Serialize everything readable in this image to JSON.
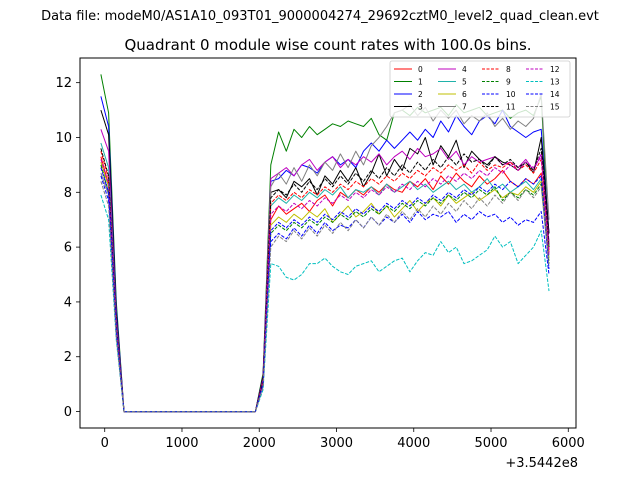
{
  "figure": {
    "suptitle": "Data file: modeM0/AS1A10_093T01_9000004274_29692cztM0_level2_quad_clean.evt",
    "title": "Quadrant 0 module wise count rates with 100.0s bins.",
    "offset_label": "+3.5442e8"
  },
  "chart_data": {
    "type": "line",
    "title": "Quadrant 0 module wise count rates with 100.0s bins.",
    "xlabel": "",
    "ylabel": "",
    "x_offset_text": "+3.5442e8",
    "xlim": [
      -320,
      6100
    ],
    "ylim": [
      -0.6,
      12.9
    ],
    "xticks": [
      0,
      1000,
      2000,
      3000,
      4000,
      5000,
      6000
    ],
    "yticks": [
      0,
      2,
      4,
      6,
      8,
      10,
      12
    ],
    "legend_position": "top-right",
    "legend_columns": 4,
    "x": [
      -50,
      50,
      150,
      250,
      350,
      450,
      550,
      650,
      750,
      850,
      950,
      1050,
      1150,
      1250,
      1350,
      1450,
      1550,
      1650,
      1750,
      1850,
      1950,
      2050,
      2150,
      2250,
      2350,
      2450,
      2550,
      2650,
      2750,
      2850,
      2950,
      3050,
      3150,
      3250,
      3350,
      3450,
      3550,
      3650,
      3750,
      3850,
      3950,
      4050,
      4150,
      4250,
      4350,
      4450,
      4550,
      4650,
      4750,
      4850,
      4950,
      5050,
      5150,
      5250,
      5350,
      5450,
      5550,
      5650,
      5750
    ],
    "series": [
      {
        "name": "0",
        "color": "#ff0000",
        "dash": "solid",
        "values": [
          9.3,
          8.3,
          3.0,
          0.0,
          0.0,
          0.0,
          0.0,
          0.0,
          0.0,
          0.0,
          0.0,
          0.0,
          0.0,
          0.0,
          0.0,
          0.0,
          0.0,
          0.0,
          0.0,
          0.0,
          0.0,
          1.2,
          7.0,
          7.5,
          7.2,
          7.4,
          7.6,
          7.3,
          7.7,
          7.9,
          7.5,
          8.0,
          7.8,
          8.1,
          7.9,
          8.2,
          8.0,
          8.3,
          8.1,
          8.0,
          8.4,
          8.2,
          8.5,
          8.1,
          8.6,
          8.3,
          8.7,
          8.4,
          8.2,
          8.6,
          8.3,
          8.5,
          8.8,
          8.4,
          8.2,
          8.5,
          8.3,
          8.7,
          5.8
        ]
      },
      {
        "name": "1",
        "color": "#008000",
        "dash": "solid",
        "values": [
          12.3,
          10.9,
          4.0,
          0.0,
          0.0,
          0.0,
          0.0,
          0.0,
          0.0,
          0.0,
          0.0,
          0.0,
          0.0,
          0.0,
          0.0,
          0.0,
          0.0,
          0.0,
          0.0,
          0.0,
          0.0,
          1.4,
          9.0,
          10.2,
          9.5,
          10.3,
          10.0,
          10.4,
          10.1,
          10.3,
          10.5,
          10.4,
          10.6,
          10.5,
          10.4,
          10.7,
          10.1,
          9.9,
          10.9,
          11.0,
          10.8,
          11.1,
          10.9,
          11.0,
          11.1,
          10.8,
          11.2,
          10.9,
          11.0,
          11.1,
          10.8,
          10.9,
          11.0,
          10.7,
          10.9,
          11.0,
          10.8,
          11.5,
          6.0
        ]
      },
      {
        "name": "2",
        "color": "#0000ff",
        "dash": "solid",
        "values": [
          11.5,
          10.4,
          3.8,
          0.0,
          0.0,
          0.0,
          0.0,
          0.0,
          0.0,
          0.0,
          0.0,
          0.0,
          0.0,
          0.0,
          0.0,
          0.0,
          0.0,
          0.0,
          0.0,
          0.0,
          0.0,
          1.3,
          8.4,
          8.5,
          8.8,
          8.6,
          9.0,
          8.9,
          8.7,
          9.1,
          9.3,
          9.0,
          9.2,
          8.9,
          9.5,
          9.8,
          9.5,
          9.9,
          9.6,
          9.9,
          10.2,
          9.9,
          10.3,
          10.0,
          10.6,
          10.2,
          10.8,
          10.4,
          10.1,
          10.6,
          10.8,
          10.5,
          11.0,
          10.4,
          10.2,
          10.0,
          10.2,
          10.3,
          6.5
        ]
      },
      {
        "name": "3",
        "color": "#000000",
        "dash": "solid",
        "values": [
          11.0,
          10.1,
          3.6,
          0.0,
          0.0,
          0.0,
          0.0,
          0.0,
          0.0,
          0.0,
          0.0,
          0.0,
          0.0,
          0.0,
          0.0,
          0.0,
          0.0,
          0.0,
          0.0,
          0.0,
          0.0,
          1.3,
          8.0,
          8.1,
          7.8,
          8.4,
          8.2,
          8.5,
          7.9,
          8.6,
          8.3,
          8.8,
          8.4,
          8.9,
          8.2,
          8.7,
          9.4,
          8.6,
          9.2,
          8.8,
          9.6,
          9.4,
          10.0,
          9.0,
          9.7,
          9.3,
          9.9,
          8.9,
          9.5,
          9.2,
          9.0,
          9.3,
          9.1,
          9.0,
          8.8,
          9.1,
          8.7,
          10.0,
          6.5
        ]
      },
      {
        "name": "4",
        "color": "#bf00bf",
        "dash": "solid",
        "values": [
          10.3,
          9.5,
          3.4,
          0.0,
          0.0,
          0.0,
          0.0,
          0.0,
          0.0,
          0.0,
          0.0,
          0.0,
          0.0,
          0.0,
          0.0,
          0.0,
          0.0,
          0.0,
          0.0,
          0.0,
          0.0,
          1.2,
          8.5,
          8.7,
          8.9,
          8.6,
          9.0,
          9.2,
          8.8,
          9.1,
          9.3,
          8.9,
          9.2,
          9.0,
          9.3,
          9.1,
          9.4,
          9.0,
          9.3,
          9.5,
          9.2,
          9.6,
          9.3,
          9.4,
          9.6,
          9.2,
          9.5,
          9.0,
          9.3,
          9.1,
          9.2,
          9.3,
          9.0,
          9.1,
          8.9,
          9.2,
          8.8,
          9.4,
          6.2
        ]
      },
      {
        "name": "5",
        "color": "#20b2aa",
        "dash": "solid",
        "values": [
          9.8,
          8.9,
          3.2,
          0.0,
          0.0,
          0.0,
          0.0,
          0.0,
          0.0,
          0.0,
          0.0,
          0.0,
          0.0,
          0.0,
          0.0,
          0.0,
          0.0,
          0.0,
          0.0,
          0.0,
          0.0,
          1.1,
          7.5,
          7.8,
          7.6,
          7.9,
          7.7,
          8.0,
          7.8,
          8.1,
          7.9,
          8.2,
          7.8,
          8.1,
          8.0,
          8.2,
          7.9,
          8.3,
          8.0,
          8.2,
          8.4,
          8.1,
          8.3,
          8.0,
          8.2,
          8.4,
          8.1,
          8.3,
          8.0,
          8.2,
          8.5,
          8.1,
          8.3,
          8.0,
          8.2,
          8.4,
          8.1,
          8.5,
          5.6
        ]
      },
      {
        "name": "6",
        "color": "#bfbf00",
        "dash": "solid",
        "values": [
          9.1,
          8.2,
          3.0,
          0.0,
          0.0,
          0.0,
          0.0,
          0.0,
          0.0,
          0.0,
          0.0,
          0.0,
          0.0,
          0.0,
          0.0,
          0.0,
          0.0,
          0.0,
          0.0,
          0.0,
          0.0,
          1.0,
          6.8,
          7.1,
          6.9,
          7.2,
          7.0,
          7.3,
          7.1,
          7.4,
          6.9,
          7.2,
          7.5,
          7.1,
          7.3,
          7.6,
          7.2,
          7.5,
          7.1,
          7.4,
          7.7,
          7.3,
          7.6,
          7.8,
          7.5,
          7.9,
          7.6,
          7.8,
          8.0,
          7.7,
          7.9,
          8.1,
          7.8,
          8.0,
          7.9,
          8.2,
          8.0,
          8.4,
          5.5
        ]
      },
      {
        "name": "7",
        "color": "#808080",
        "dash": "solid",
        "values": [
          8.7,
          7.9,
          2.9,
          0.0,
          0.0,
          0.0,
          0.0,
          0.0,
          0.0,
          0.0,
          0.0,
          0.0,
          0.0,
          0.0,
          0.0,
          0.0,
          0.0,
          0.0,
          0.0,
          0.0,
          0.0,
          1.0,
          8.2,
          8.7,
          8.3,
          8.9,
          8.4,
          9.0,
          8.6,
          9.1,
          8.8,
          9.4,
          8.9,
          9.5,
          9.0,
          9.7,
          10.0,
          10.4,
          10.9,
          11.0,
          11.2,
          10.8,
          11.1,
          10.6,
          11.0,
          10.7,
          11.0,
          10.5,
          10.8,
          10.6,
          10.9,
          10.4,
          10.7,
          10.3,
          10.6,
          10.4,
          10.7,
          11.6,
          7.0
        ]
      },
      {
        "name": "8",
        "color": "#ff0000",
        "dash": "dashed",
        "values": [
          9.5,
          8.5,
          3.1,
          0.0,
          0.0,
          0.0,
          0.0,
          0.0,
          0.0,
          0.0,
          0.0,
          0.0,
          0.0,
          0.0,
          0.0,
          0.0,
          0.0,
          0.0,
          0.0,
          0.0,
          0.0,
          1.1,
          7.6,
          7.9,
          7.7,
          8.0,
          7.8,
          8.1,
          7.9,
          8.2,
          8.0,
          8.3,
          8.1,
          8.4,
          8.2,
          8.5,
          8.3,
          8.6,
          8.4,
          8.7,
          8.5,
          8.8,
          8.6,
          8.9,
          8.7,
          9.0,
          8.8,
          9.0,
          8.7,
          9.1,
          8.8,
          9.0,
          8.9,
          9.1,
          8.8,
          9.0,
          8.7,
          9.2,
          5.9
        ]
      },
      {
        "name": "9",
        "color": "#008000",
        "dash": "dashed",
        "values": [
          9.0,
          8.0,
          2.9,
          0.0,
          0.0,
          0.0,
          0.0,
          0.0,
          0.0,
          0.0,
          0.0,
          0.0,
          0.0,
          0.0,
          0.0,
          0.0,
          0.0,
          0.0,
          0.0,
          0.0,
          0.0,
          1.0,
          6.5,
          6.8,
          6.6,
          6.9,
          6.7,
          7.0,
          6.8,
          7.1,
          6.9,
          7.2,
          7.0,
          7.3,
          7.1,
          7.4,
          7.2,
          7.5,
          7.3,
          7.6,
          7.4,
          7.7,
          7.5,
          7.8,
          7.6,
          7.9,
          7.7,
          8.0,
          7.8,
          8.1,
          7.9,
          8.2,
          7.7,
          8.0,
          7.8,
          8.1,
          7.9,
          8.3,
          5.4
        ]
      },
      {
        "name": "10",
        "color": "#0000ff",
        "dash": "dashed",
        "values": [
          8.6,
          7.7,
          2.8,
          0.0,
          0.0,
          0.0,
          0.0,
          0.0,
          0.0,
          0.0,
          0.0,
          0.0,
          0.0,
          0.0,
          0.0,
          0.0,
          0.0,
          0.0,
          0.0,
          0.0,
          0.0,
          0.9,
          6.2,
          6.5,
          6.3,
          6.7,
          6.4,
          6.8,
          6.5,
          6.9,
          6.6,
          6.8,
          6.7,
          7.0,
          6.7,
          7.1,
          6.8,
          7.1,
          6.9,
          7.2,
          6.9,
          7.3,
          7.0,
          7.2,
          7.1,
          7.3,
          6.9,
          7.2,
          7.0,
          7.3,
          7.1,
          7.2,
          6.9,
          7.1,
          6.8,
          7.0,
          6.9,
          7.3,
          5.0
        ]
      },
      {
        "name": "11",
        "color": "#000000",
        "dash": "dashed",
        "values": [
          9.6,
          8.6,
          3.1,
          0.0,
          0.0,
          0.0,
          0.0,
          0.0,
          0.0,
          0.0,
          0.0,
          0.0,
          0.0,
          0.0,
          0.0,
          0.0,
          0.0,
          0.0,
          0.0,
          0.0,
          0.0,
          1.1,
          7.8,
          8.1,
          7.9,
          8.3,
          8.0,
          8.4,
          8.1,
          8.5,
          8.2,
          8.6,
          8.3,
          8.7,
          8.4,
          8.8,
          8.5,
          8.9,
          8.6,
          9.0,
          8.7,
          9.1,
          8.8,
          9.2,
          8.9,
          9.3,
          9.0,
          9.4,
          9.1,
          9.2,
          8.9,
          9.3,
          9.0,
          9.2,
          8.9,
          9.1,
          8.8,
          9.6,
          6.0
        ]
      },
      {
        "name": "12",
        "color": "#bf00bf",
        "dash": "dashed",
        "values": [
          9.2,
          8.3,
          3.0,
          0.0,
          0.0,
          0.0,
          0.0,
          0.0,
          0.0,
          0.0,
          0.0,
          0.0,
          0.0,
          0.0,
          0.0,
          0.0,
          0.0,
          0.0,
          0.0,
          0.0,
          0.0,
          1.0,
          7.2,
          7.5,
          7.3,
          7.6,
          7.4,
          7.7,
          7.5,
          7.8,
          7.6,
          7.9,
          7.7,
          8.0,
          7.8,
          8.1,
          7.9,
          8.2,
          8.0,
          8.3,
          8.1,
          8.4,
          8.2,
          8.5,
          8.3,
          8.6,
          8.4,
          8.7,
          8.5,
          8.8,
          8.6,
          8.9,
          8.7,
          9.0,
          8.8,
          9.1,
          8.9,
          9.3,
          5.7
        ]
      },
      {
        "name": "13",
        "color": "#00bfbf",
        "dash": "dashed",
        "values": [
          7.9,
          7.0,
          2.6,
          0.0,
          0.0,
          0.0,
          0.0,
          0.0,
          0.0,
          0.0,
          0.0,
          0.0,
          0.0,
          0.0,
          0.0,
          0.0,
          0.0,
          0.0,
          0.0,
          0.0,
          0.0,
          0.8,
          5.4,
          5.3,
          4.9,
          4.8,
          5.0,
          5.4,
          5.4,
          5.6,
          5.3,
          5.1,
          5.0,
          5.3,
          5.4,
          5.5,
          5.1,
          5.3,
          5.5,
          5.6,
          5.1,
          5.5,
          5.8,
          5.7,
          6.2,
          5.8,
          6.0,
          5.4,
          5.5,
          5.7,
          5.9,
          6.4,
          6.0,
          6.2,
          5.4,
          5.7,
          6.0,
          6.6,
          4.4
        ]
      },
      {
        "name": "14",
        "color": "#0000ff",
        "dash": "dashed",
        "values": [
          8.9,
          8.0,
          2.9,
          0.0,
          0.0,
          0.0,
          0.0,
          0.0,
          0.0,
          0.0,
          0.0,
          0.0,
          0.0,
          0.0,
          0.0,
          0.0,
          0.0,
          0.0,
          0.0,
          0.0,
          0.0,
          1.0,
          6.6,
          6.9,
          6.7,
          7.0,
          6.8,
          7.1,
          6.9,
          7.2,
          7.0,
          7.3,
          7.1,
          7.4,
          7.2,
          7.5,
          7.3,
          7.6,
          7.4,
          7.7,
          7.5,
          7.8,
          7.6,
          7.9,
          7.7,
          8.0,
          7.8,
          8.1,
          7.9,
          8.2,
          8.0,
          8.3,
          8.1,
          8.4,
          8.2,
          8.5,
          8.3,
          8.6,
          5.2
        ]
      },
      {
        "name": "15",
        "color": "#808080",
        "dash": "dashed",
        "values": [
          8.4,
          7.5,
          2.7,
          0.0,
          0.0,
          0.0,
          0.0,
          0.0,
          0.0,
          0.0,
          0.0,
          0.0,
          0.0,
          0.0,
          0.0,
          0.0,
          0.0,
          0.0,
          0.0,
          0.0,
          0.0,
          0.9,
          6.0,
          6.4,
          6.2,
          6.6,
          6.3,
          6.7,
          6.4,
          6.8,
          6.5,
          6.9,
          6.6,
          7.0,
          6.7,
          7.1,
          6.8,
          7.2,
          6.9,
          7.3,
          7.0,
          7.4,
          7.1,
          7.5,
          7.2,
          7.6,
          7.3,
          7.7,
          7.4,
          7.8,
          7.5,
          7.9,
          7.6,
          8.0,
          7.7,
          8.1,
          7.8,
          8.2,
          5.3
        ]
      }
    ]
  }
}
